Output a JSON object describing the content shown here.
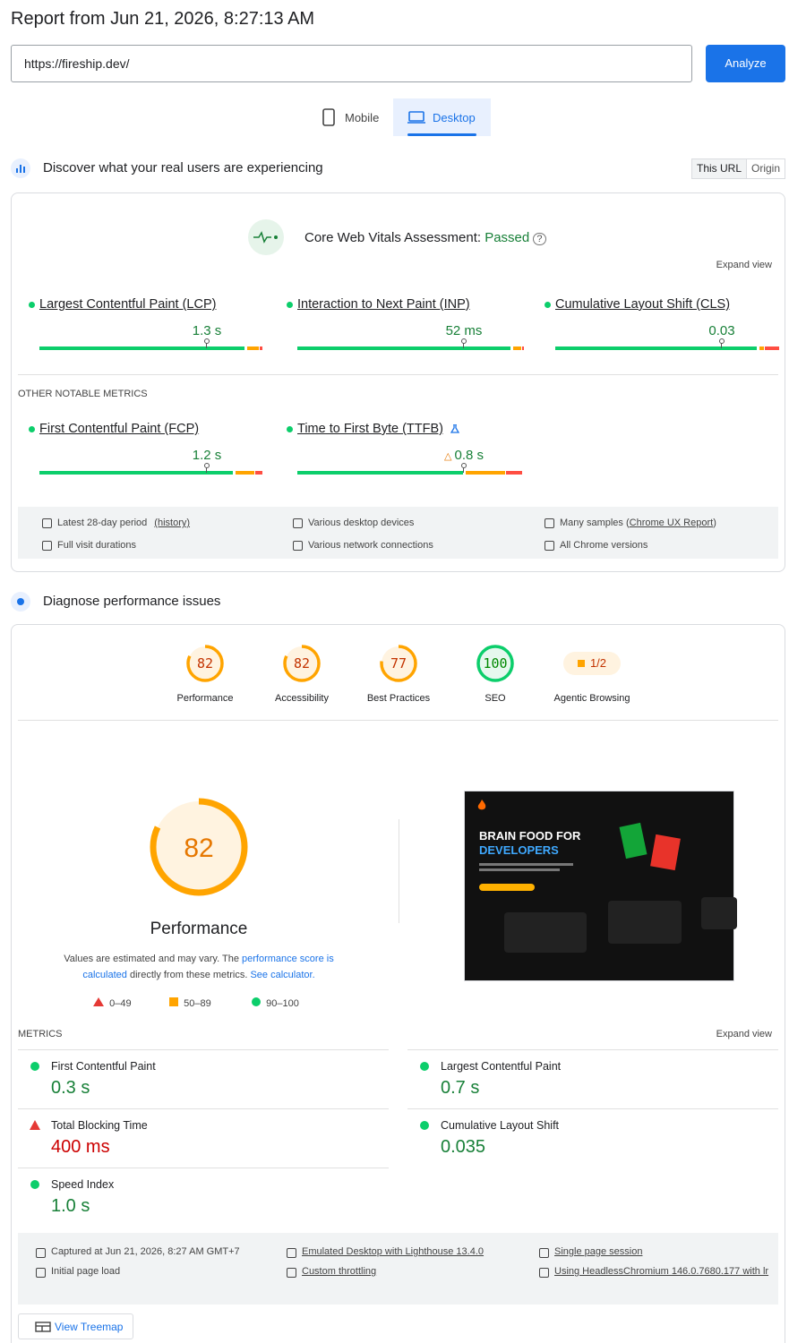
{
  "header": {
    "title": "Report from Jun 21, 2026, 8:27:13 AM",
    "url": "https://fireship.dev/",
    "analyze": "Analyze",
    "tabs": [
      "Mobile",
      "Desktop"
    ]
  },
  "field": {
    "heading": "Discover what your real users are experiencing",
    "toggle": [
      "This URL",
      "Origin"
    ],
    "assessment": "Core Web Vitals Assessment:",
    "status": "Passed",
    "expand": "Expand view",
    "core_metrics": [
      {
        "name": "Largest Contentful Paint (LCP)",
        "value": "1.3 s"
      },
      {
        "name": "Interaction to Next Paint (INP)",
        "value": "52 ms"
      },
      {
        "name": "Cumulative Layout Shift (CLS)",
        "value": "0.03"
      }
    ],
    "other_heading": "OTHER NOTABLE METRICS",
    "other_metrics": [
      {
        "name": "First Contentful Paint (FCP)",
        "value": "1.2 s"
      },
      {
        "name": "Time to First Byte (TTFB)",
        "value": "0.8 s"
      }
    ],
    "footer": [
      {
        "text": "Latest 28-day period",
        "link": "(history)"
      },
      {
        "text": "Full visit durations"
      },
      {
        "text": "Various desktop devices"
      },
      {
        "text": "Various network connections"
      },
      {
        "text": "Many samples (",
        "link": "Chrome UX Report",
        "suffix": ")"
      },
      {
        "text": "All Chrome versions"
      }
    ]
  },
  "lab": {
    "heading": "Diagnose performance issues",
    "categories": [
      {
        "score": 82,
        "label": "Performance",
        "color": "#ffa400"
      },
      {
        "score": 82,
        "label": "Accessibility",
        "color": "#ffa400"
      },
      {
        "score": 77,
        "label": "Best Practices",
        "color": "#ffa400"
      },
      {
        "score": 100,
        "label": "SEO",
        "color": "#0cce6b"
      },
      {
        "score": "1/2",
        "label": "Agentic Browsing",
        "color": "#ffa400"
      }
    ],
    "main_score": 82,
    "main_label": "Performance",
    "note": [
      "Values are estimated and may vary. The ",
      "performance score is calculated",
      " directly from these metrics. ",
      "See calculator."
    ],
    "legend": [
      "0–49",
      "50–89",
      "90–100"
    ],
    "screenshot": {
      "headline": [
        "BRAIN FOOD FOR",
        "DEVELOPERS"
      ]
    },
    "metrics_heading": "METRICS",
    "expand": "Expand view",
    "metrics": [
      {
        "name": "First Contentful Paint",
        "value": "0.3 s",
        "rating": "pass"
      },
      {
        "name": "Largest Contentful Paint",
        "value": "0.7 s",
        "rating": "pass"
      },
      {
        "name": "Total Blocking Time",
        "value": "400 ms",
        "rating": "fail"
      },
      {
        "name": "Cumulative Layout Shift",
        "value": "0.035",
        "rating": "pass"
      },
      {
        "name": "Speed Index",
        "value": "1.0 s",
        "rating": "pass"
      }
    ],
    "footer": [
      "Captured at Jun 21, 2026, 8:27 AM GMT+7",
      "Initial page load",
      "Emulated Desktop with Lighthouse 13.4.0",
      "Custom throttling",
      "Single page session",
      "Using HeadlessChromium 146.0.7680.177 with lr"
    ],
    "treemap": "View Treemap"
  }
}
